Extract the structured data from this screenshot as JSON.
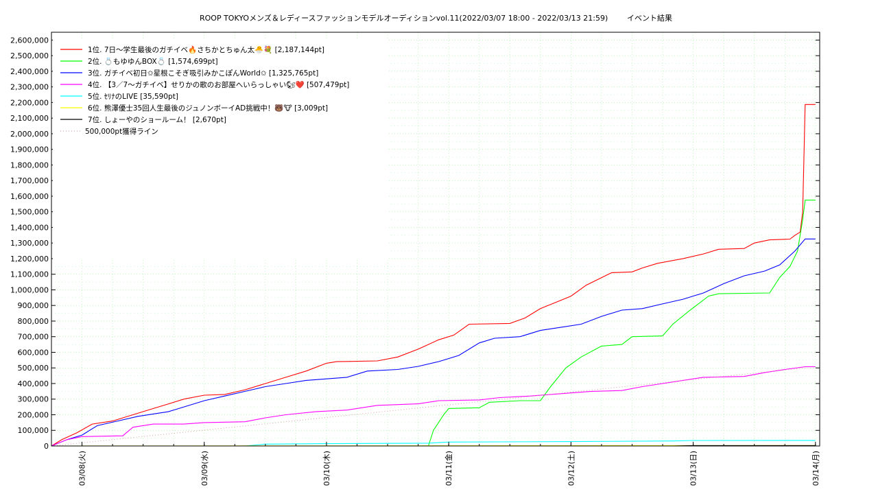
{
  "chart_data": {
    "type": "line",
    "title": "ROOP TOKYOメンズ＆レディースファッションモデルオーディションvol.11(2022/03/07 18:00 - 2022/03/13 21:59)",
    "subtitle": "イベント結果",
    "xlabel": "",
    "ylabel": "",
    "x_range": [
      "2022/03/07 18:00",
      "2022/03/14 00:50"
    ],
    "ylim": [
      0,
      2650000
    ],
    "y_ticks": [
      {
        "value": 0,
        "label": "0"
      },
      {
        "value": 100000,
        "label": "100,000"
      },
      {
        "value": 200000,
        "label": "200,000"
      },
      {
        "value": 300000,
        "label": "300,000"
      },
      {
        "value": 400000,
        "label": "400,000"
      },
      {
        "value": 500000,
        "label": "500,000"
      },
      {
        "value": 600000,
        "label": "600,000"
      },
      {
        "value": 700000,
        "label": "700,000"
      },
      {
        "value": 800000,
        "label": "800,000"
      },
      {
        "value": 900000,
        "label": "900,000"
      },
      {
        "value": 1000000,
        "label": "1,000,000"
      },
      {
        "value": 1100000,
        "label": "1,100,000"
      },
      {
        "value": 1200000,
        "label": "1,200,000"
      },
      {
        "value": 1300000,
        "label": "1,300,000"
      },
      {
        "value": 1400000,
        "label": "1,400,000"
      },
      {
        "value": 1500000,
        "label": "1,500,000"
      },
      {
        "value": 1600000,
        "label": "1,600,000"
      },
      {
        "value": 1700000,
        "label": "1,700,000"
      },
      {
        "value": 1800000,
        "label": "1,800,000"
      },
      {
        "value": 1900000,
        "label": "1,900,000"
      },
      {
        "value": 2000000,
        "label": "2,000,000"
      },
      {
        "value": 2100000,
        "label": "2,100,000"
      },
      {
        "value": 2200000,
        "label": "2,200,000"
      },
      {
        "value": 2300000,
        "label": "2,300,000"
      },
      {
        "value": 2400000,
        "label": "2,400,000"
      },
      {
        "value": 2500000,
        "label": "2,500,000"
      },
      {
        "value": 2600000,
        "label": "2,600,000"
      }
    ],
    "x_ticks": [
      {
        "value": "2022/03/08 00:00",
        "label": "03/08(火)"
      },
      {
        "value": "2022/03/09 00:00",
        "label": "03/09(水)"
      },
      {
        "value": "2022/03/10 00:00",
        "label": "03/10(木)"
      },
      {
        "value": "2022/03/11 00:00",
        "label": "03/11(金)"
      },
      {
        "value": "2022/03/12 00:00",
        "label": "03/12(土)"
      },
      {
        "value": "2022/03/13 00:00",
        "label": "03/13(日)"
      },
      {
        "value": "2022/03/14 00:00",
        "label": "03/14(月)"
      }
    ],
    "grid": true,
    "legend_position": "top-left",
    "series": [
      {
        "name": "1位. 7日〜学生最後のガチイベ🔥さちかとちゅん太🐣💐 [2,187,144pt]",
        "color": "#ff0000",
        "style": "solid",
        "points": [
          [
            "2022/03/07 18:00",
            0
          ],
          [
            "2022/03/07 20:00",
            40000
          ],
          [
            "2022/03/07 23:00",
            85000
          ],
          [
            "2022/03/08 02:00",
            140000
          ],
          [
            "2022/03/08 06:00",
            160000
          ],
          [
            "2022/03/08 10:00",
            200000
          ],
          [
            "2022/03/08 14:00",
            240000
          ],
          [
            "2022/03/08 17:00",
            270000
          ],
          [
            "2022/03/08 20:00",
            300000
          ],
          [
            "2022/03/09 00:00",
            325000
          ],
          [
            "2022/03/09 04:00",
            330000
          ],
          [
            "2022/03/09 08:00",
            360000
          ],
          [
            "2022/03/09 12:00",
            400000
          ],
          [
            "2022/03/09 16:00",
            440000
          ],
          [
            "2022/03/09 20:00",
            480000
          ],
          [
            "2022/03/10 00:00",
            530000
          ],
          [
            "2022/03/10 02:00",
            540000
          ],
          [
            "2022/03/10 10:00",
            545000
          ],
          [
            "2022/03/10 14:00",
            570000
          ],
          [
            "2022/03/10 18:00",
            620000
          ],
          [
            "2022/03/10 22:00",
            680000
          ],
          [
            "2022/03/11 01:00",
            710000
          ],
          [
            "2022/03/11 04:00",
            780000
          ],
          [
            "2022/03/11 12:00",
            785000
          ],
          [
            "2022/03/11 15:00",
            820000
          ],
          [
            "2022/03/11 18:00",
            880000
          ],
          [
            "2022/03/11 21:00",
            920000
          ],
          [
            "2022/03/12 00:00",
            960000
          ],
          [
            "2022/03/12 03:00",
            1030000
          ],
          [
            "2022/03/12 08:00",
            1110000
          ],
          [
            "2022/03/12 12:00",
            1115000
          ],
          [
            "2022/03/12 14:00",
            1140000
          ],
          [
            "2022/03/12 17:00",
            1170000
          ],
          [
            "2022/03/12 22:00",
            1200000
          ],
          [
            "2022/03/13 02:00",
            1230000
          ],
          [
            "2022/03/13 05:00",
            1260000
          ],
          [
            "2022/03/13 10:00",
            1265000
          ],
          [
            "2022/03/13 12:00",
            1300000
          ],
          [
            "2022/03/13 15:00",
            1320000
          ],
          [
            "2022/03/13 19:00",
            1325000
          ],
          [
            "2022/03/13 20:00",
            1350000
          ],
          [
            "2022/03/13 21:00",
            1370000
          ],
          [
            "2022/03/13 21:30",
            1500000
          ],
          [
            "2022/03/13 21:59",
            2187144
          ],
          [
            "2022/03/14 00:00",
            2187144
          ]
        ]
      },
      {
        "name": "2位. 💍もゆゆんBOX💍 [1,574,699pt]",
        "color": "#00ff00",
        "style": "solid",
        "points": [
          [
            "2022/03/07 18:00",
            0
          ],
          [
            "2022/03/10 20:00",
            0
          ],
          [
            "2022/03/10 21:00",
            100000
          ],
          [
            "2022/03/10 23:00",
            200000
          ],
          [
            "2022/03/11 00:00",
            240000
          ],
          [
            "2022/03/11 06:00",
            245000
          ],
          [
            "2022/03/11 08:00",
            280000
          ],
          [
            "2022/03/11 14:00",
            290000
          ],
          [
            "2022/03/11 18:00",
            290000
          ],
          [
            "2022/03/11 20:00",
            380000
          ],
          [
            "2022/03/11 23:00",
            500000
          ],
          [
            "2022/03/12 02:00",
            570000
          ],
          [
            "2022/03/12 06:00",
            640000
          ],
          [
            "2022/03/12 10:00",
            650000
          ],
          [
            "2022/03/12 12:00",
            700000
          ],
          [
            "2022/03/12 18:00",
            705000
          ],
          [
            "2022/03/12 20:00",
            780000
          ],
          [
            "2022/03/12 23:00",
            860000
          ],
          [
            "2022/03/13 03:00",
            960000
          ],
          [
            "2022/03/13 05:00",
            975000
          ],
          [
            "2022/03/13 15:00",
            980000
          ],
          [
            "2022/03/13 17:00",
            1080000
          ],
          [
            "2022/03/13 19:00",
            1150000
          ],
          [
            "2022/03/13 20:30",
            1250000
          ],
          [
            "2022/03/13 21:30",
            1450000
          ],
          [
            "2022/03/13 21:59",
            1574699
          ],
          [
            "2022/03/14 00:00",
            1574699
          ]
        ]
      },
      {
        "name": "3位. ガチイベ初日✩星根こそぎ吸引みかこぽんWorld✩ [1,325,765pt]",
        "color": "#0000ff",
        "style": "solid",
        "points": [
          [
            "2022/03/07 18:00",
            0
          ],
          [
            "2022/03/07 21:00",
            40000
          ],
          [
            "2022/03/08 00:00",
            70000
          ],
          [
            "2022/03/08 03:00",
            130000
          ],
          [
            "2022/03/08 07:00",
            160000
          ],
          [
            "2022/03/08 11:00",
            190000
          ],
          [
            "2022/03/08 17:00",
            220000
          ],
          [
            "2022/03/08 20:00",
            250000
          ],
          [
            "2022/03/09 00:00",
            290000
          ],
          [
            "2022/03/09 04:00",
            320000
          ],
          [
            "2022/03/09 08:00",
            350000
          ],
          [
            "2022/03/09 12:00",
            380000
          ],
          [
            "2022/03/09 16:00",
            400000
          ],
          [
            "2022/03/09 20:00",
            420000
          ],
          [
            "2022/03/10 00:00",
            430000
          ],
          [
            "2022/03/10 04:00",
            440000
          ],
          [
            "2022/03/10 08:00",
            480000
          ],
          [
            "2022/03/10 14:00",
            490000
          ],
          [
            "2022/03/10 18:00",
            510000
          ],
          [
            "2022/03/10 22:00",
            540000
          ],
          [
            "2022/03/11 02:00",
            580000
          ],
          [
            "2022/03/11 06:00",
            660000
          ],
          [
            "2022/03/11 09:00",
            690000
          ],
          [
            "2022/03/11 14:00",
            700000
          ],
          [
            "2022/03/11 18:00",
            740000
          ],
          [
            "2022/03/11 22:00",
            760000
          ],
          [
            "2022/03/12 02:00",
            780000
          ],
          [
            "2022/03/12 06:00",
            830000
          ],
          [
            "2022/03/12 10:00",
            870000
          ],
          [
            "2022/03/12 14:00",
            880000
          ],
          [
            "2022/03/12 18:00",
            910000
          ],
          [
            "2022/03/12 22:00",
            940000
          ],
          [
            "2022/03/13 02:00",
            980000
          ],
          [
            "2022/03/13 06:00",
            1040000
          ],
          [
            "2022/03/13 10:00",
            1090000
          ],
          [
            "2022/03/13 14:00",
            1120000
          ],
          [
            "2022/03/13 17:00",
            1160000
          ],
          [
            "2022/03/13 20:00",
            1250000
          ],
          [
            "2022/03/13 21:59",
            1325765
          ],
          [
            "2022/03/14 00:00",
            1325765
          ]
        ]
      },
      {
        "name": "4位. 【3／7〜ガチイベ】せりかの歌のお部屋へいらっしゃい🐿❤️ [507,479pt]",
        "color": "#ff00ff",
        "style": "solid",
        "points": [
          [
            "2022/03/07 18:00",
            0
          ],
          [
            "2022/03/07 21:00",
            40000
          ],
          [
            "2022/03/08 00:00",
            60000
          ],
          [
            "2022/03/08 08:00",
            65000
          ],
          [
            "2022/03/08 10:00",
            120000
          ],
          [
            "2022/03/08 14:00",
            140000
          ],
          [
            "2022/03/08 20:00",
            140000
          ],
          [
            "2022/03/09 00:00",
            150000
          ],
          [
            "2022/03/09 08:00",
            155000
          ],
          [
            "2022/03/09 12:00",
            180000
          ],
          [
            "2022/03/09 16:00",
            200000
          ],
          [
            "2022/03/09 22:00",
            220000
          ],
          [
            "2022/03/10 04:00",
            230000
          ],
          [
            "2022/03/10 10:00",
            260000
          ],
          [
            "2022/03/10 18:00",
            270000
          ],
          [
            "2022/03/10 22:00",
            290000
          ],
          [
            "2022/03/11 06:00",
            295000
          ],
          [
            "2022/03/11 10:00",
            310000
          ],
          [
            "2022/03/11 16:00",
            320000
          ],
          [
            "2022/03/11 22:00",
            335000
          ],
          [
            "2022/03/12 04:00",
            350000
          ],
          [
            "2022/03/12 10:00",
            355000
          ],
          [
            "2022/03/12 14:00",
            380000
          ],
          [
            "2022/03/12 18:00",
            400000
          ],
          [
            "2022/03/12 22:00",
            420000
          ],
          [
            "2022/03/13 02:00",
            440000
          ],
          [
            "2022/03/13 10:00",
            445000
          ],
          [
            "2022/03/13 14:00",
            470000
          ],
          [
            "2022/03/13 18:00",
            490000
          ],
          [
            "2022/03/13 21:59",
            507479
          ],
          [
            "2022/03/14 00:00",
            507479
          ]
        ]
      },
      {
        "name": "5位. ｾﾘﾅのLIVE [35,590pt]",
        "color": "#00ffff",
        "style": "solid",
        "points": [
          [
            "2022/03/07 18:00",
            0
          ],
          [
            "2022/03/09 08:00",
            0
          ],
          [
            "2022/03/09 12:00",
            12000
          ],
          [
            "2022/03/10 00:00",
            15000
          ],
          [
            "2022/03/10 20:00",
            18000
          ],
          [
            "2022/03/11 00:00",
            25000
          ],
          [
            "2022/03/12 00:00",
            28000
          ],
          [
            "2022/03/12 20:00",
            32000
          ],
          [
            "2022/03/13 00:00",
            35000
          ],
          [
            "2022/03/13 21:59",
            35590
          ],
          [
            "2022/03/14 00:00",
            35590
          ]
        ]
      },
      {
        "name": "6位. 熊澤優士35回人生最後のジュノンボーイAD挑戦中！🐻🐮 [3,009pt]",
        "color": "#ffff00",
        "style": "solid",
        "points": [
          [
            "2022/03/07 18:00",
            0
          ],
          [
            "2022/03/10 00:00",
            1000
          ],
          [
            "2022/03/12 00:00",
            2000
          ],
          [
            "2022/03/13 21:59",
            3009
          ],
          [
            "2022/03/14 00:00",
            3009
          ]
        ]
      },
      {
        "name": "7位. しょーやのショールーム！ [2,670pt]",
        "color": "#000000",
        "style": "solid",
        "points": [
          [
            "2022/03/07 18:00",
            0
          ],
          [
            "2022/03/12 20:00",
            0
          ],
          [
            "2022/03/13 00:00",
            2670
          ],
          [
            "2022/03/14 00:00",
            2670
          ]
        ]
      },
      {
        "name": "500,000pt獲得ライン",
        "color": "#d0a0a0",
        "style": "dotted",
        "points": [
          [
            "2022/03/07 18:00",
            0
          ],
          [
            "2022/03/13 21:59",
            500000
          ],
          [
            "2022/03/14 00:00",
            500000
          ]
        ]
      }
    ]
  }
}
